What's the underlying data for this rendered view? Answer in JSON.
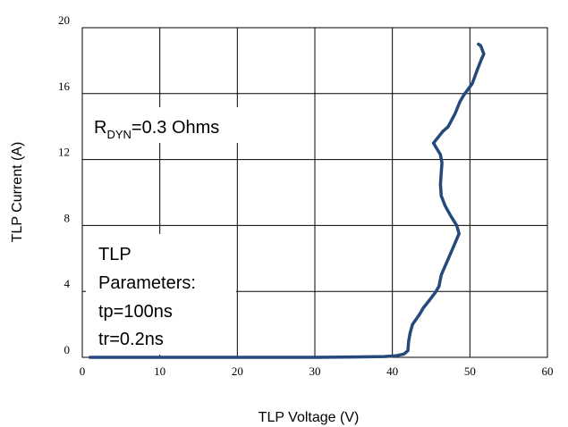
{
  "chart_data": {
    "type": "line",
    "title": "",
    "xlabel": "TLP Voltage (V)",
    "ylabel": "TLP Current (A)",
    "xlim": [
      0,
      60
    ],
    "ylim": [
      0,
      20
    ],
    "x_ticks": [
      0,
      10,
      20,
      30,
      40,
      50,
      60
    ],
    "y_ticks": [
      0,
      4,
      8,
      12,
      16,
      20
    ],
    "x_tick_labels": [
      "0",
      "10",
      "20",
      "30",
      "40",
      "50",
      "60"
    ],
    "y_tick_labels": [
      "0",
      "4",
      "8",
      "12",
      "16",
      "20"
    ],
    "grid": true,
    "series": [
      {
        "color": "#24497a",
        "x": [
          1,
          10,
          20,
          30,
          35,
          39,
          40.5,
          41.5,
          42,
          42.1,
          42.3,
          42.6,
          43.5,
          44,
          44.5,
          45.5,
          46,
          46.3,
          47.5,
          48.6,
          48.3,
          47.5,
          46.8,
          46.3,
          46.2,
          46.3,
          46.4,
          46.2,
          45.3,
          46.5,
          47.2,
          48.1,
          48.7,
          49.2,
          50.3,
          51,
          51.5,
          51.8,
          51.4,
          51.1
        ],
        "y": [
          0,
          0,
          0,
          0,
          0.02,
          0.05,
          0.1,
          0.2,
          0.4,
          1,
          1.5,
          2,
          2.6,
          3,
          3.3,
          3.9,
          4.3,
          5,
          6.3,
          7.5,
          8,
          8.6,
          9.2,
          9.8,
          10.5,
          11.2,
          11.8,
          12.3,
          13,
          13.7,
          14,
          14.8,
          15.5,
          15.9,
          16.6,
          17.5,
          18.1,
          18.4,
          18.9,
          19
        ]
      }
    ],
    "annotations": {
      "rdyn_main": "R",
      "rdyn_sub": "DYN",
      "rdyn_value": "=0.3 Ohms",
      "tlp_line1": "TLP",
      "tlp_line2": "Parameters:",
      "tlp_line3": "tp=100ns",
      "tlp_line4": "tr=0.2ns"
    }
  }
}
